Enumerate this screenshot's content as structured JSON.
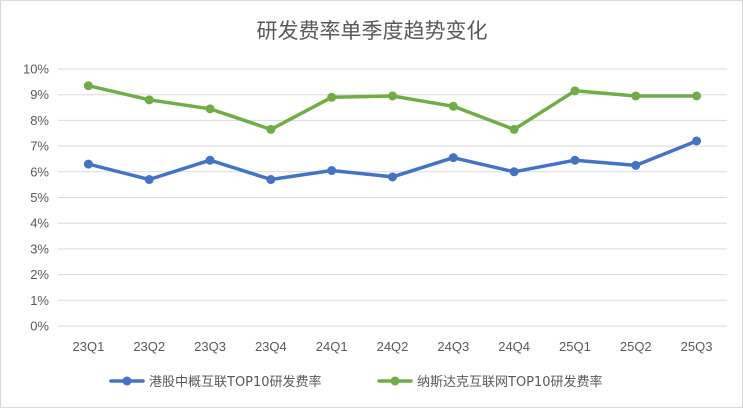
{
  "chart_data": {
    "type": "line",
    "title": "研发费率单季度趋势变化",
    "categories": [
      "23Q1",
      "23Q2",
      "23Q3",
      "23Q4",
      "24Q1",
      "24Q2",
      "24Q3",
      "24Q4",
      "25Q1",
      "25Q2",
      "25Q3"
    ],
    "ylim": [
      0,
      10
    ],
    "yticks": [
      "0%",
      "1%",
      "2%",
      "3%",
      "4%",
      "5%",
      "6%",
      "7%",
      "8%",
      "9%",
      "10%"
    ],
    "grid": true,
    "legend_position": "bottom",
    "series": [
      {
        "name": "港股中概互联TOP10研发费率",
        "color": "#4472c4",
        "values": [
          6.3,
          5.7,
          6.45,
          5.7,
          6.05,
          5.8,
          6.55,
          6.0,
          6.45,
          6.25,
          7.2
        ]
      },
      {
        "name": "纳斯达克互联网TOP10研发费率",
        "color": "#70ad47",
        "values": [
          9.35,
          8.8,
          8.45,
          7.65,
          8.9,
          8.95,
          8.55,
          7.65,
          9.15,
          8.95,
          8.95
        ]
      }
    ]
  }
}
